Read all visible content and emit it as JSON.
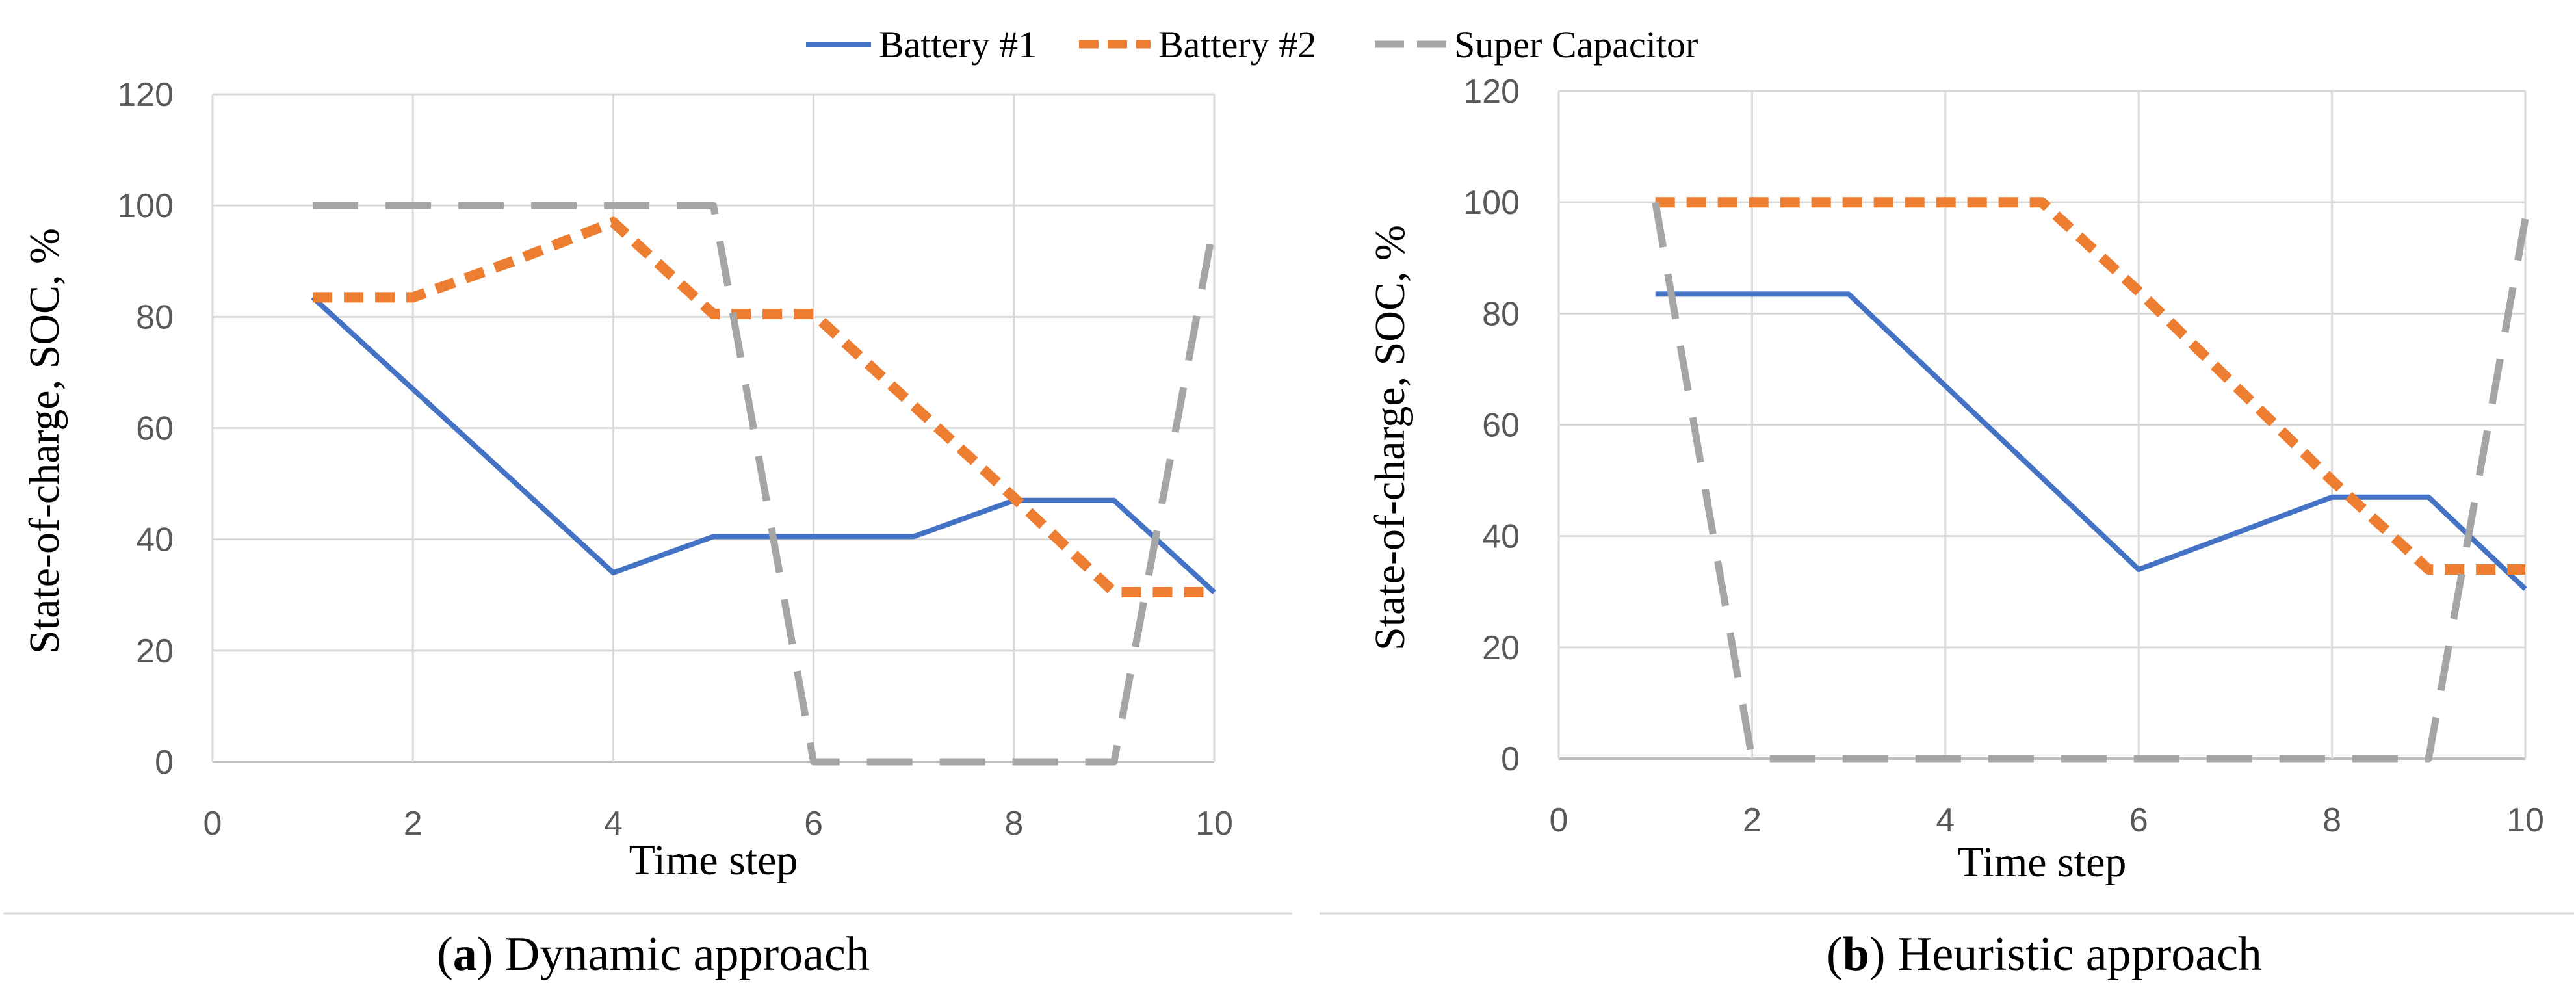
{
  "legend": [
    {
      "name": "Battery #1",
      "color": "#4472C4",
      "style": "solid"
    },
    {
      "name": "Battery #2",
      "color": "#ED7D31",
      "style": "dash"
    },
    {
      "name": "Super Capacitor",
      "color": "#A5A5A5",
      "style": "longdash"
    }
  ],
  "chart_data": [
    {
      "type": "line",
      "caption_letter": "a",
      "caption_text": ") Dynamic approach",
      "xlabel": "Time step",
      "ylabel": "State-of-charge, SOC, %",
      "xlim": [
        0,
        10
      ],
      "ylim": [
        0,
        120
      ],
      "xticks": [
        0,
        2,
        4,
        6,
        8,
        10
      ],
      "yticks": [
        0,
        20,
        40,
        60,
        80,
        100,
        120
      ],
      "grid": true,
      "series": [
        {
          "name": "Battery #1",
          "x": [
            1,
            2,
            3,
            4,
            5,
            6,
            7,
            8,
            9,
            10
          ],
          "values": [
            83.5,
            67,
            50.5,
            34,
            40.5,
            40.5,
            40.5,
            47,
            47,
            30.5
          ]
        },
        {
          "name": "Battery #2",
          "x": [
            1,
            2,
            3,
            4,
            5,
            6,
            7,
            8,
            9,
            10
          ],
          "values": [
            83.5,
            83.5,
            90,
            97,
            80.5,
            80.5,
            64,
            47.5,
            30.5,
            30.5
          ]
        },
        {
          "name": "Super Capacitor",
          "x": [
            1,
            2,
            3,
            4,
            5,
            6,
            7,
            8,
            9,
            10
          ],
          "values": [
            100,
            100,
            100,
            100,
            100,
            0,
            0,
            0,
            0,
            97
          ]
        }
      ]
    },
    {
      "type": "line",
      "caption_letter": "b",
      "caption_text": ") Heuristic approach",
      "xlabel": "Time step",
      "ylabel": "State-of-charge, SOC, %",
      "xlim": [
        0,
        10
      ],
      "ylim": [
        0,
        120
      ],
      "xticks": [
        0,
        2,
        4,
        6,
        8,
        10
      ],
      "yticks": [
        0,
        20,
        40,
        60,
        80,
        100,
        120
      ],
      "grid": true,
      "series": [
        {
          "name": "Battery #1",
          "x": [
            1,
            2,
            3,
            4,
            5,
            6,
            7,
            8,
            9,
            10
          ],
          "values": [
            83.5,
            83.5,
            83.5,
            67,
            50.5,
            34,
            40.5,
            47,
            47,
            30.5
          ]
        },
        {
          "name": "Battery #2",
          "x": [
            1,
            2,
            3,
            4,
            5,
            6,
            7,
            8,
            9,
            10
          ],
          "values": [
            100,
            100,
            100,
            100,
            100,
            84,
            67,
            50,
            34,
            34
          ]
        },
        {
          "name": "Super Capacitor",
          "x": [
            1,
            2,
            3,
            4,
            5,
            6,
            7,
            8,
            9,
            10
          ],
          "values": [
            100,
            0,
            0,
            0,
            0,
            0,
            0,
            0,
            0,
            97
          ]
        }
      ]
    }
  ]
}
